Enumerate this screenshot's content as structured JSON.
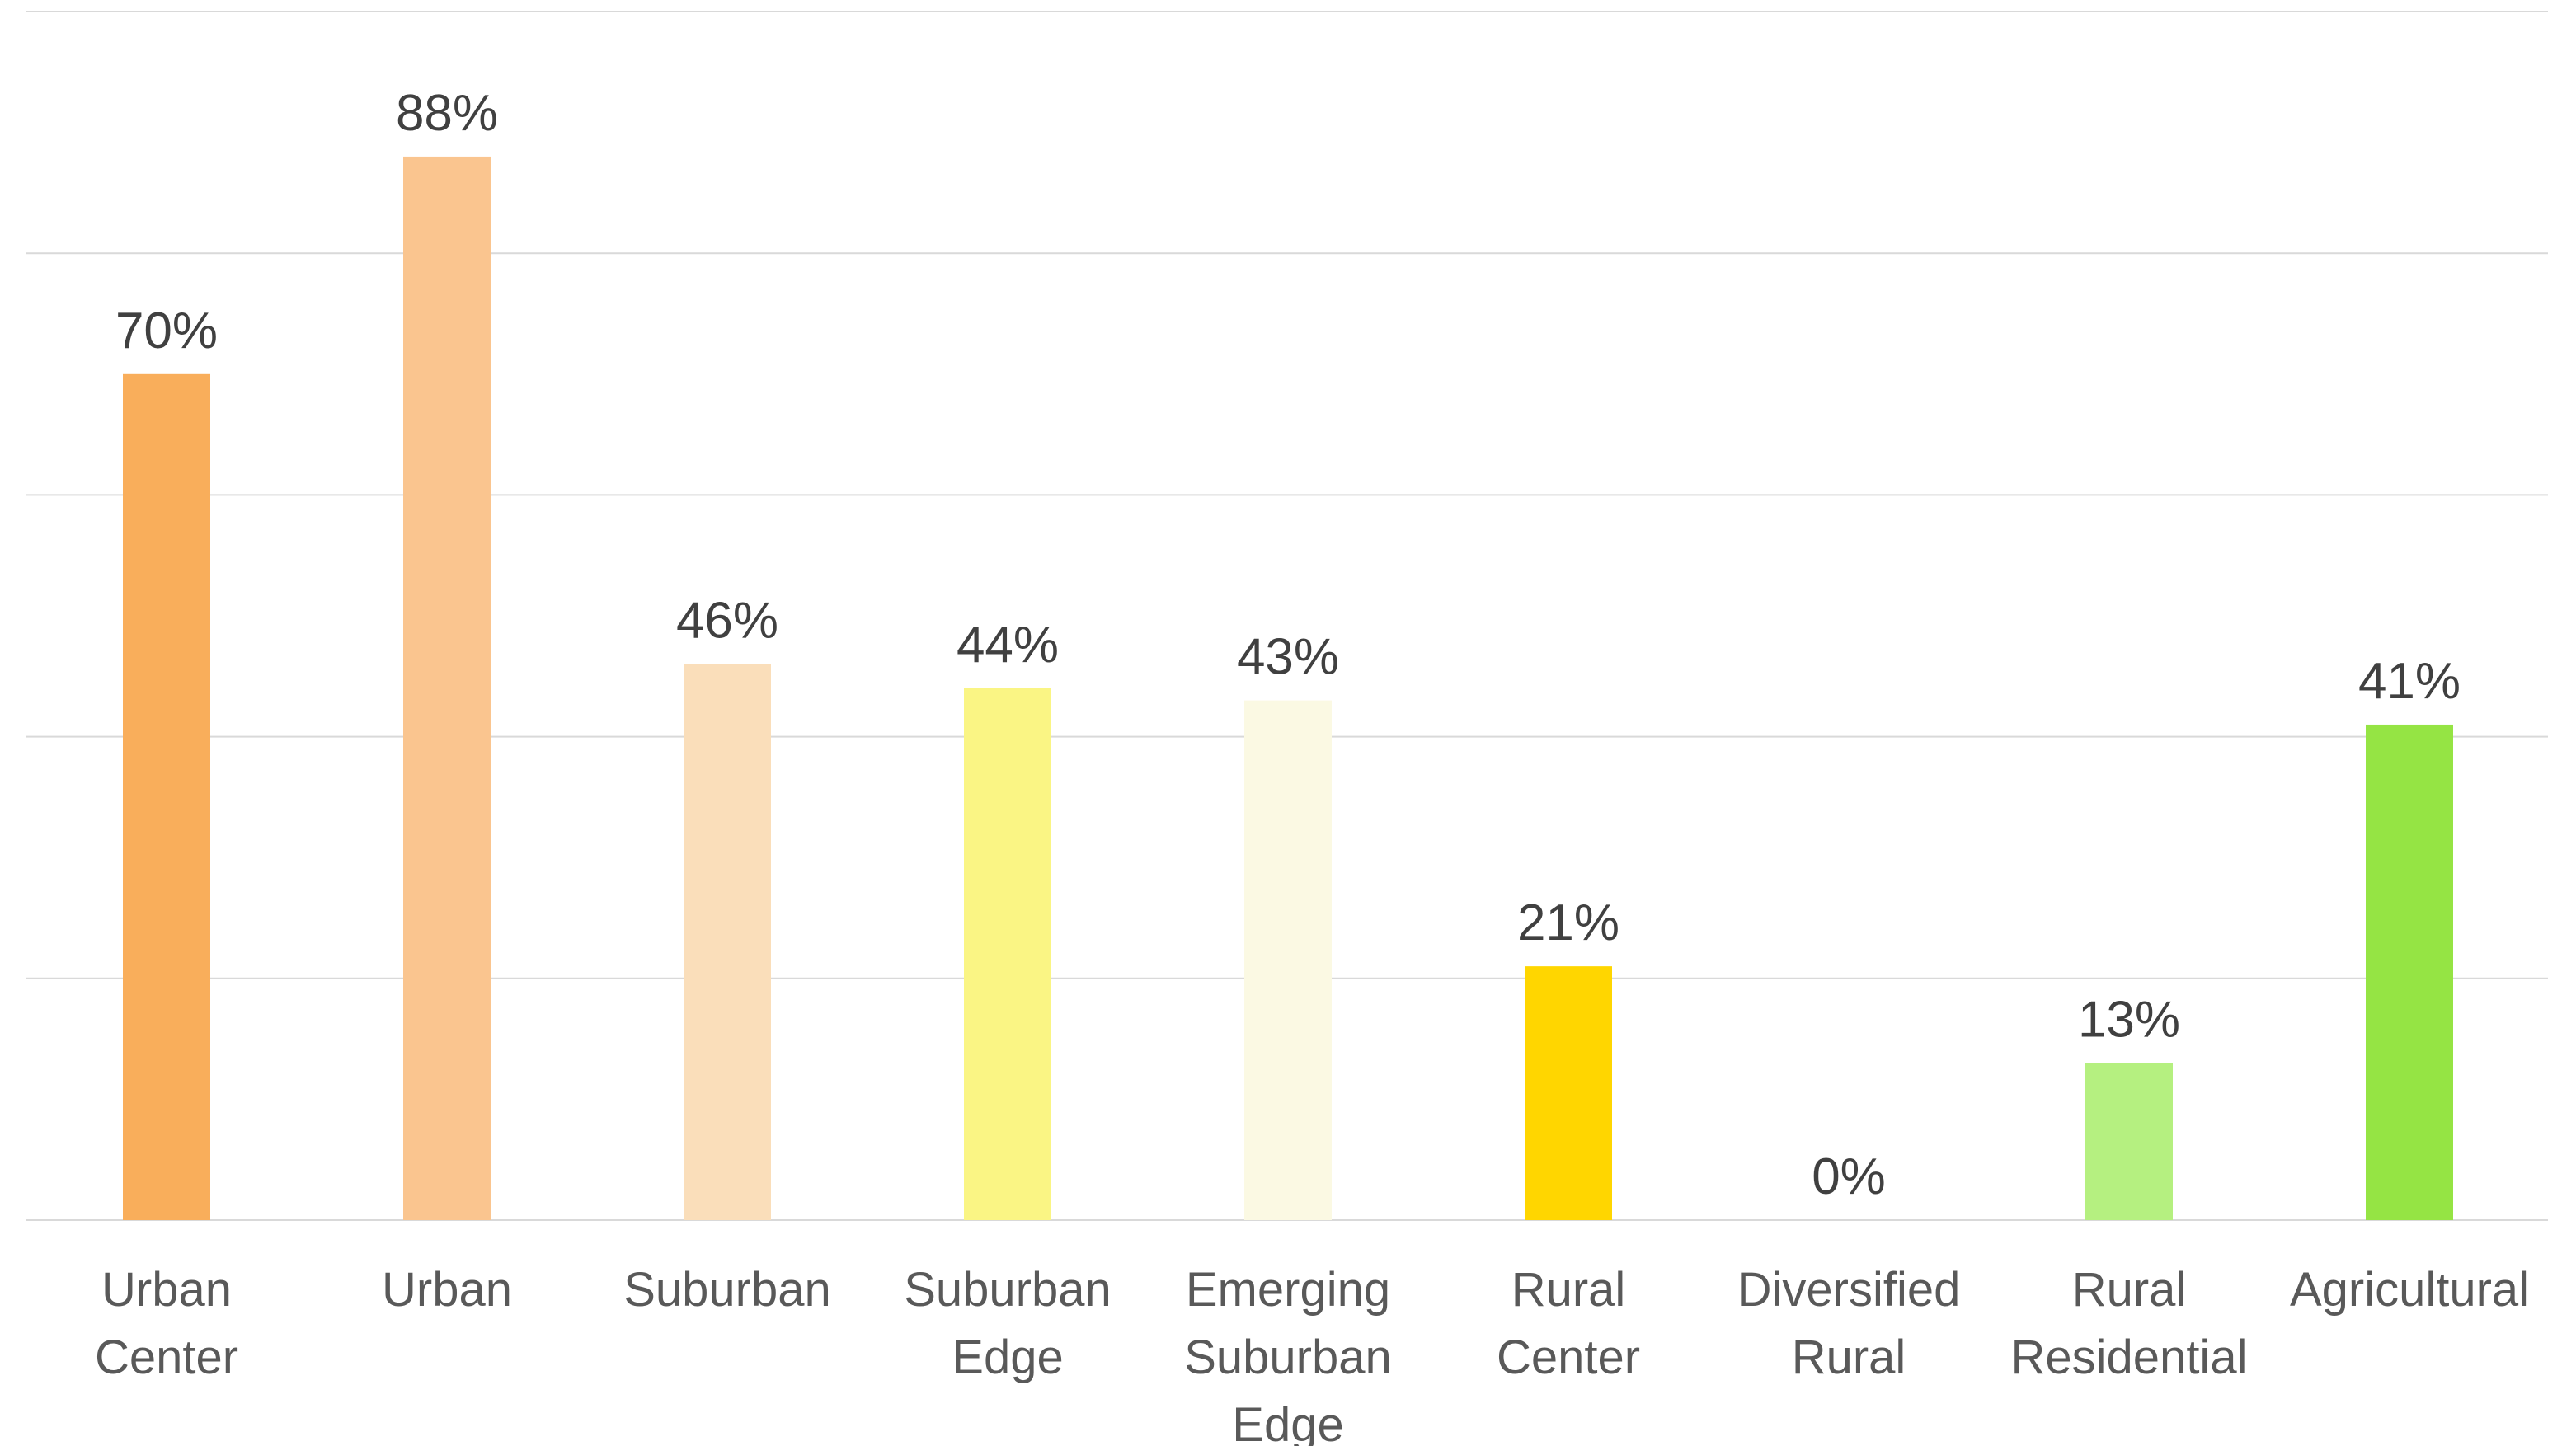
{
  "chart_data": {
    "type": "bar",
    "title": "",
    "xlabel": "",
    "ylabel": "",
    "ylim": [
      0,
      100
    ],
    "grid": true,
    "legend": "none",
    "categories": [
      [
        "Urban",
        "Center"
      ],
      [
        "Urban"
      ],
      [
        "Suburban"
      ],
      [
        "Suburban",
        "Edge"
      ],
      [
        "Emerging",
        "Suburban",
        "Edge"
      ],
      [
        "Rural",
        "Center"
      ],
      [
        "Diversified",
        "Rural"
      ],
      [
        "Rural",
        "Residential"
      ],
      [
        "Agricultural"
      ]
    ],
    "values": [
      70,
      88,
      46,
      44,
      43,
      21,
      0,
      13,
      41
    ],
    "value_labels": [
      "70%",
      "88%",
      "46%",
      "44%",
      "43%",
      "21%",
      "0%",
      "13%",
      "41%"
    ],
    "colors": [
      "#f9ae5b",
      "#fac58f",
      "#fadeba",
      "#faf584",
      "#fbf9e3",
      "#ffd600",
      "#ffffff",
      "#b5f080",
      "#95e444"
    ]
  }
}
